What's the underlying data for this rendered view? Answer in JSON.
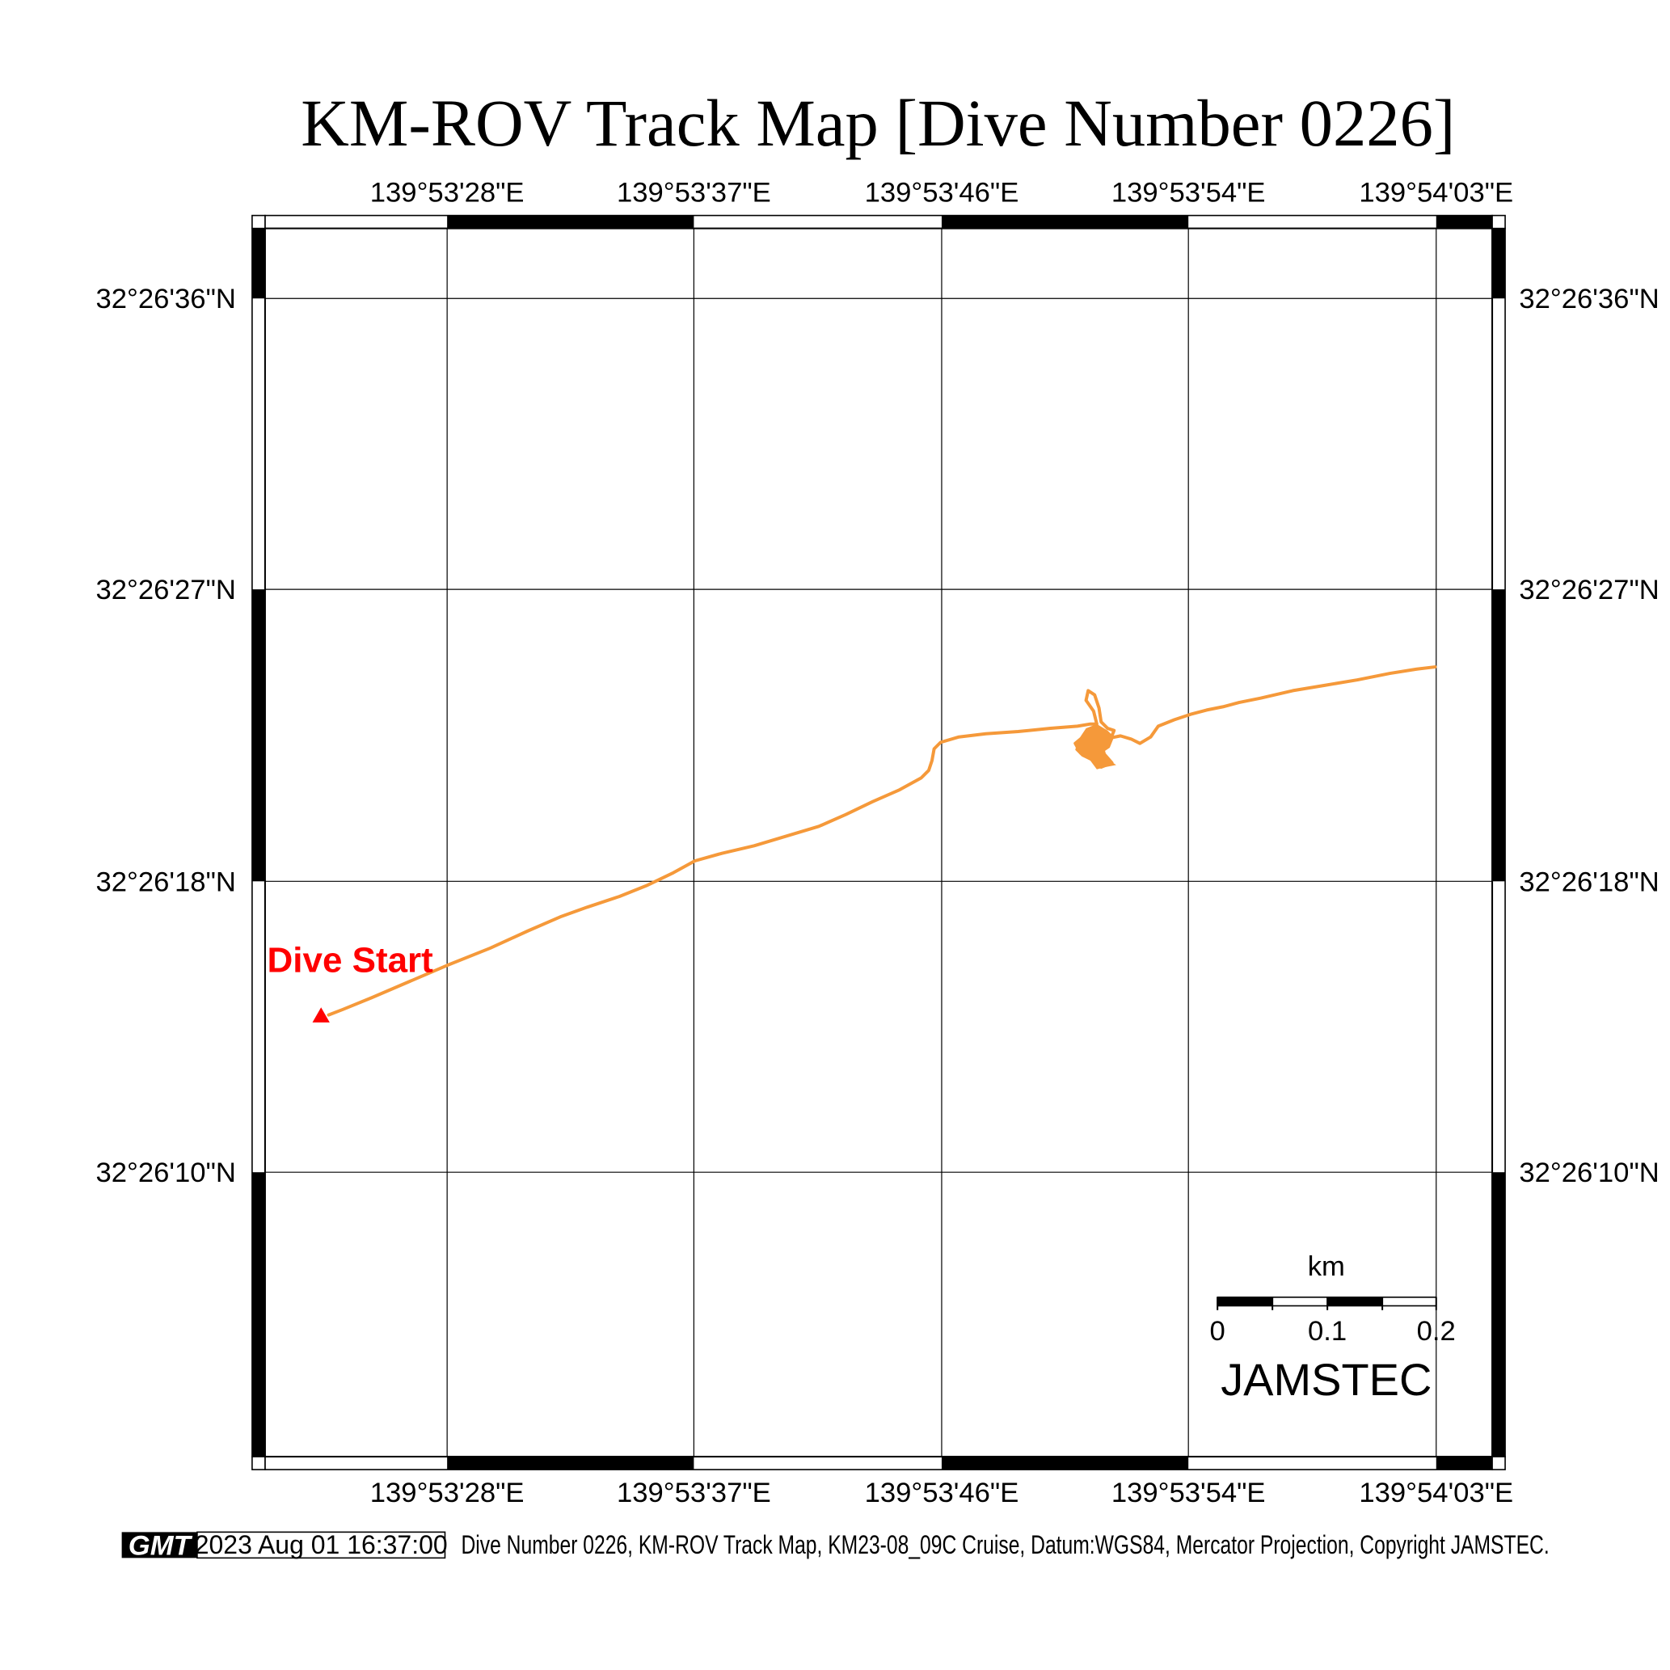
{
  "title": "KM-ROV Track Map [Dive Number 0226]",
  "colors": {
    "track": "#f5993a",
    "marker": "#ff0000",
    "grid": "#000000",
    "frame": "#000000"
  },
  "axes": {
    "lon_labels": [
      "139°53'28\"E",
      "139°53'37\"E",
      "139°53'46\"E",
      "139°53'54\"E",
      "139°54'03\"E"
    ],
    "lat_labels": [
      "32°26'36\"N",
      "32°26'27\"N",
      "32°26'18\"N",
      "32°26'10\"N"
    ]
  },
  "track": {
    "points": [
      [
        305,
        942
      ],
      [
        318,
        937
      ],
      [
        345,
        926
      ],
      [
        380,
        911
      ],
      [
        415,
        896
      ],
      [
        455,
        880
      ],
      [
        490,
        864
      ],
      [
        520,
        851
      ],
      [
        545,
        842
      ],
      [
        575,
        832
      ],
      [
        600,
        822
      ],
      [
        625,
        810
      ],
      [
        645,
        799
      ],
      [
        670,
        792
      ],
      [
        700,
        785
      ],
      [
        730,
        776
      ],
      [
        760,
        767
      ],
      [
        785,
        756
      ],
      [
        810,
        744
      ],
      [
        835,
        733
      ],
      [
        855,
        722
      ],
      [
        862,
        715
      ],
      [
        865,
        706
      ],
      [
        867,
        695
      ],
      [
        873,
        689
      ],
      [
        890,
        684
      ],
      [
        915,
        681
      ],
      [
        945,
        679
      ],
      [
        975,
        676
      ],
      [
        1000,
        674
      ],
      [
        1012,
        672
      ],
      [
        1018,
        672
      ],
      [
        1015,
        660
      ],
      [
        1008,
        650
      ],
      [
        1010,
        641
      ],
      [
        1016,
        645
      ],
      [
        1020,
        657
      ],
      [
        1022,
        670
      ],
      [
        1028,
        676
      ],
      [
        1034,
        678
      ],
      [
        1030,
        688
      ],
      [
        1022,
        690
      ],
      [
        1025,
        700
      ],
      [
        1032,
        708
      ],
      [
        1022,
        712
      ],
      [
        1014,
        705
      ],
      [
        1010,
        697
      ],
      [
        1003,
        699
      ],
      [
        998,
        690
      ],
      [
        1004,
        685
      ],
      [
        1012,
        679
      ],
      [
        1022,
        681
      ],
      [
        1030,
        685
      ],
      [
        1040,
        683
      ],
      [
        1050,
        686
      ],
      [
        1058,
        690
      ],
      [
        1068,
        684
      ],
      [
        1075,
        674
      ],
      [
        1090,
        668
      ],
      [
        1105,
        663
      ],
      [
        1120,
        659
      ],
      [
        1135,
        656
      ],
      [
        1150,
        652
      ],
      [
        1170,
        648
      ],
      [
        1200,
        641
      ],
      [
        1230,
        636
      ],
      [
        1260,
        631
      ],
      [
        1290,
        625
      ],
      [
        1315,
        621
      ],
      [
        1332,
        619
      ]
    ]
  },
  "dive_start": {
    "label": "Dive Start"
  },
  "scale_bar": {
    "unit": "km",
    "ticks": [
      "0",
      "0.1",
      "0.2"
    ]
  },
  "brand": "JAMSTEC",
  "footer": {
    "logo": "GMT",
    "timestamp": "2023 Aug 01 16:37:00",
    "caption": "Dive Number 0226, KM-ROV Track Map, KM23-08_09C Cruise, Datum:WGS84, Mercator Projection, Copyright JAMSTEC."
  }
}
